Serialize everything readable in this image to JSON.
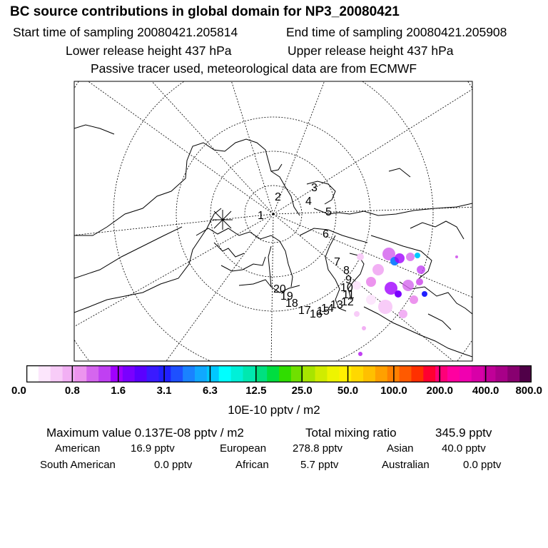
{
  "title": "BC  source contributions in global domain for NP3_20080421",
  "start_sampling": "Start time of sampling 20080421.205814",
  "end_sampling": "End time of sampling 20080421.205908",
  "lower_release": "Lower release height  437 hPa",
  "upper_release": "Upper release height  437 hPa",
  "tracer_note": "Passive tracer used, meteorological data are from ECMWF",
  "map": {
    "trajectory_labels": [
      "1",
      "2",
      "3",
      "4",
      "5",
      "6",
      "7",
      "8",
      "9",
      "10",
      "11",
      "12",
      "13",
      "14",
      "15",
      "16",
      "17",
      "18",
      "19",
      "20"
    ]
  },
  "colorbar": {
    "ticks": [
      "0.0",
      "0.8",
      "1.6",
      "3.1",
      "6.3",
      "12.5",
      "25.0",
      "50.0",
      "100.0",
      "200.0",
      "400.0",
      "800.0"
    ],
    "unit": "10E-10 pptv / m2",
    "colors": [
      "#ffffff",
      "#fce6fc",
      "#f8ccf8",
      "#f2b0f4",
      "#ec94ee",
      "#d566ee",
      "#c040f2",
      "#a000ff",
      "#7a00ff",
      "#5a00ff",
      "#3a1aff",
      "#2020ff",
      "#1e50ff",
      "#1a82ff",
      "#10a8ff",
      "#00c8ff",
      "#00ffff",
      "#00f0d8",
      "#00e8b0",
      "#00e080",
      "#00dd40",
      "#30dd00",
      "#70e000",
      "#a8e400",
      "#d0ec00",
      "#eef400",
      "#fff000",
      "#ffd800",
      "#ffc000",
      "#ffa000",
      "#ff8000",
      "#ff5a00",
      "#ff3000",
      "#ff0030",
      "#ff0078",
      "#ff00a0",
      "#f000b0",
      "#d800a8",
      "#c00098",
      "#a80088",
      "#880070",
      "#500048"
    ]
  },
  "stats": {
    "maximum_value": "Maximum value  0.137E-08 pptv / m2",
    "total_mixing_label": "Total mixing ratio",
    "total_mixing_value": "345.9 pptv"
  },
  "sources": {
    "american_label": "American",
    "american_value": "16.9 pptv",
    "european_label": "European",
    "european_value": "278.8 pptv",
    "asian_label": "Asian",
    "asian_value": "40.0 pptv",
    "south_american_label": "South American",
    "south_american_value": "0.0 pptv",
    "african_label": "African",
    "african_value": "5.7 pptv",
    "australian_label": "Australian",
    "australian_value": "0.0 pptv"
  }
}
